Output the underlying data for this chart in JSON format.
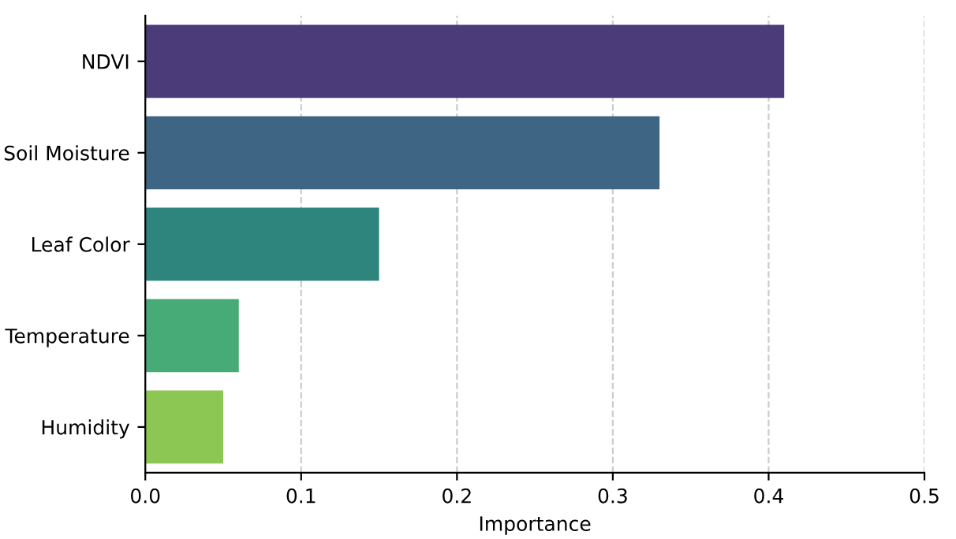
{
  "chart_data": {
    "type": "bar",
    "orientation": "horizontal",
    "xlabel": "Importance",
    "categories": [
      "NDVI",
      "Soil Moisture",
      "Leaf Color",
      "Temperature",
      "Humidity"
    ],
    "values": [
      0.41,
      0.33,
      0.15,
      0.06,
      0.05
    ],
    "colors": [
      "#4b3b79",
      "#3f6585",
      "#2d857d",
      "#46ab76",
      "#8cc753"
    ],
    "xlim": [
      0,
      0.5
    ],
    "xticks": [
      {
        "value": 0,
        "label": "0.0"
      },
      0.1,
      0.2,
      0.3,
      0.4,
      0.5
    ],
    "grid": "x"
  }
}
